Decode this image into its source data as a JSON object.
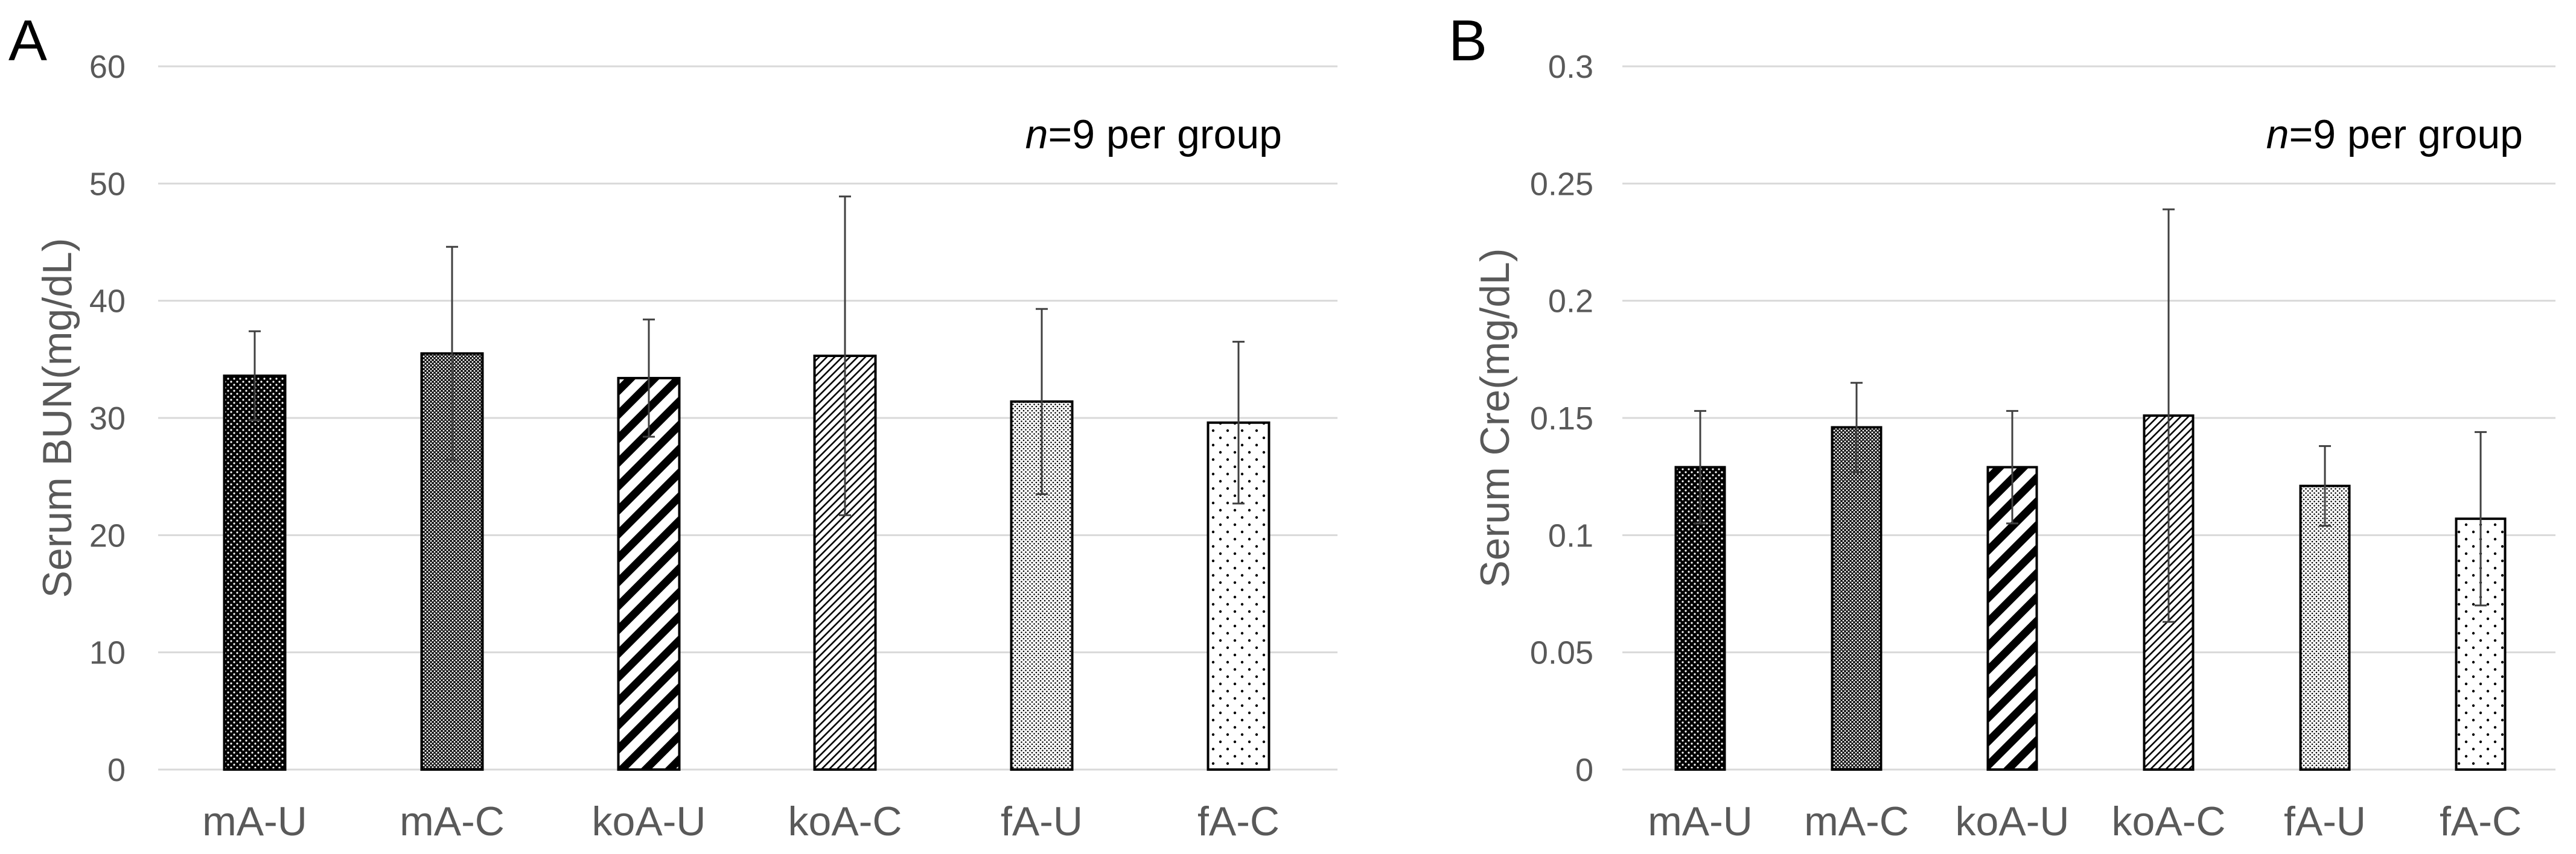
{
  "chart_data": [
    {
      "type": "bar",
      "panel_label": "A",
      "ylabel": "Serum BUN(mg/dL)",
      "ylim": [
        0,
        60
      ],
      "yticks": [
        0,
        10,
        20,
        30,
        40,
        50,
        60
      ],
      "ytick_labels": [
        "0",
        "10",
        "20",
        "30",
        "40",
        "50",
        "60"
      ],
      "categories": [
        "mA-U",
        "mA-C",
        "koA-U",
        "koA-C",
        "fA-U",
        "fA-C"
      ],
      "values": [
        33.6,
        35.5,
        33.4,
        35.3,
        31.4,
        29.6
      ],
      "errors": [
        3.8,
        9.1,
        5.0,
        13.6,
        7.9,
        6.9
      ],
      "patterns": [
        "dense-dots",
        "crosshatch",
        "wide-diagonal",
        "fine-diagonal",
        "fine-dots",
        "sparse-dots"
      ],
      "annotation": {
        "italic": "n",
        "text": "=9 per group"
      },
      "grid": true
    },
    {
      "type": "bar",
      "panel_label": "B",
      "ylabel": "Serum Cre(mg/dL)",
      "ylim": [
        0,
        0.3
      ],
      "yticks": [
        0,
        0.05,
        0.1,
        0.15,
        0.2,
        0.25,
        0.3
      ],
      "ytick_labels": [
        "0",
        "0.05",
        "0.1",
        "0.15",
        "0.2",
        "0.25",
        "0.3"
      ],
      "categories": [
        "mA-U",
        "mA-C",
        "koA-U",
        "koA-C",
        "fA-U",
        "fA-C"
      ],
      "values": [
        0.129,
        0.146,
        0.129,
        0.151,
        0.121,
        0.107
      ],
      "errors": [
        0.024,
        0.019,
        0.024,
        0.088,
        0.017,
        0.037
      ],
      "patterns": [
        "dense-dots",
        "crosshatch",
        "wide-diagonal",
        "fine-diagonal",
        "fine-dots",
        "sparse-dots"
      ],
      "annotation": {
        "italic": "n",
        "text": "=9 per group"
      },
      "grid": true
    }
  ]
}
